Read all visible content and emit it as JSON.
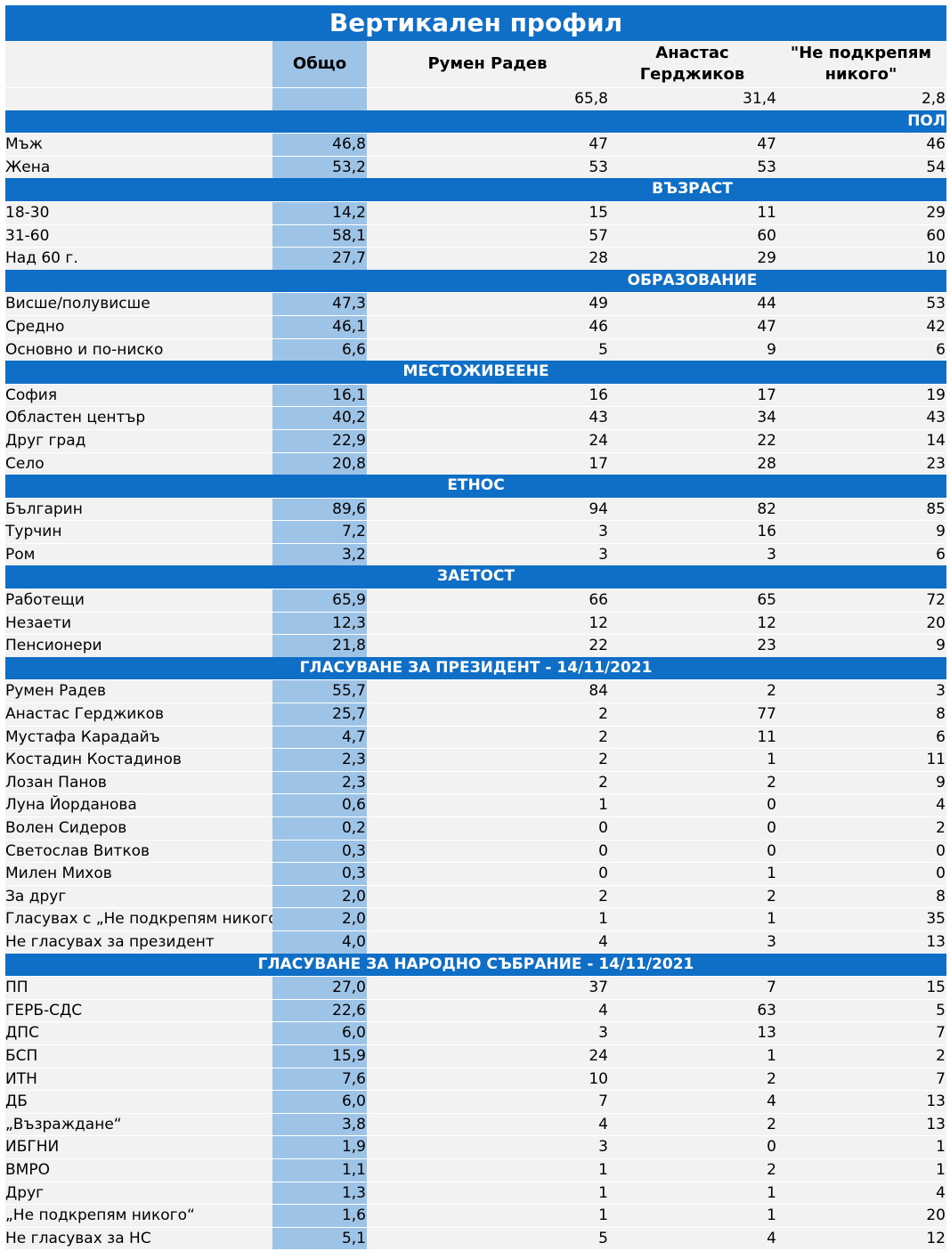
{
  "title": "Вертикален профил",
  "header": {
    "total": "Общо",
    "c1": "Румен Радев",
    "c2": "Анастас Герджиков",
    "c3_line1": "\"Не подкрепям",
    "c3_line2": "никого\""
  },
  "overall": {
    "total": "",
    "v1": "65,8",
    "v2": "31,4",
    "v3": "2,8"
  },
  "sections": [
    {
      "title": "ПОЛ",
      "align": "right",
      "rows": [
        {
          "label": "Мъж",
          "total": "46,8",
          "v1": "47",
          "v2": "47",
          "v3": "46"
        },
        {
          "label": "Жена",
          "total": "53,2",
          "v1": "53",
          "v2": "53",
          "v3": "54"
        }
      ]
    },
    {
      "title": "ВЪЗРАСТ",
      "align": "c2",
      "rows": [
        {
          "label": "18-30",
          "total": "14,2",
          "v1": "15",
          "v2": "11",
          "v3": "29"
        },
        {
          "label": "31-60",
          "total": "58,1",
          "v1": "57",
          "v2": "60",
          "v3": "60"
        },
        {
          "label": "Над 60 г.",
          "total": "27,7",
          "v1": "28",
          "v2": "29",
          "v3": "10"
        }
      ]
    },
    {
      "title": "ОБРАЗОВАНИЕ",
      "align": "c2",
      "rows": [
        {
          "label": "Висше/полувисше",
          "total": "47,3",
          "v1": "49",
          "v2": "44",
          "v3": "53"
        },
        {
          "label": "Средно",
          "total": "46,1",
          "v1": "46",
          "v2": "47",
          "v3": "42"
        },
        {
          "label": "Основно и по-ниско",
          "total": "6,6",
          "v1": "5",
          "v2": "9",
          "v3": "6"
        }
      ]
    },
    {
      "title": "МЕСТОЖИВЕЕНЕ",
      "align": "center",
      "rows": [
        {
          "label": "София",
          "total": "16,1",
          "v1": "16",
          "v2": "17",
          "v3": "19"
        },
        {
          "label": "Областен център",
          "total": "40,2",
          "v1": "43",
          "v2": "34",
          "v3": "43"
        },
        {
          "label": "Друг град",
          "total": "22,9",
          "v1": "24",
          "v2": "22",
          "v3": "14"
        },
        {
          "label": "Село",
          "total": "20,8",
          "v1": "17",
          "v2": "28",
          "v3": "23"
        }
      ]
    },
    {
      "title": "ЕТНОС",
      "align": "center",
      "rows": [
        {
          "label": "Българин",
          "total": "89,6",
          "v1": "94",
          "v2": "82",
          "v3": "85"
        },
        {
          "label": "Турчин",
          "total": "7,2",
          "v1": "3",
          "v2": "16",
          "v3": "9"
        },
        {
          "label": "Ром",
          "total": "3,2",
          "v1": "3",
          "v2": "3",
          "v3": "6"
        }
      ]
    },
    {
      "title": "ЗАЕТОСТ",
      "align": "center",
      "rows": [
        {
          "label": "Работещи",
          "total": "65,9",
          "v1": "66",
          "v2": "65",
          "v3": "72"
        },
        {
          "label": "Незаети",
          "total": "12,3",
          "v1": "12",
          "v2": "12",
          "v3": "20"
        },
        {
          "label": "Пенсионери",
          "total": "21,8",
          "v1": "22",
          "v2": "23",
          "v3": "9"
        }
      ]
    },
    {
      "title": "ГЛАСУВАНЕ ЗА ПРЕЗИДЕНТ - 14/11/2021",
      "align": "center",
      "rows": [
        {
          "label": "Румен Радев",
          "total": "55,7",
          "v1": "84",
          "v2": "2",
          "v3": "3"
        },
        {
          "label": "Анастас Герджиков",
          "total": "25,7",
          "v1": "2",
          "v2": "77",
          "v3": "8"
        },
        {
          "label": "Мустафа Карадайъ",
          "total": "4,7",
          "v1": "2",
          "v2": "11",
          "v3": "6"
        },
        {
          "label": "Костадин Костадинов",
          "total": "2,3",
          "v1": "2",
          "v2": "1",
          "v3": "11"
        },
        {
          "label": "Лозан Панов",
          "total": "2,3",
          "v1": "2",
          "v2": "2",
          "v3": "9"
        },
        {
          "label": "Луна Йорданова",
          "total": "0,6",
          "v1": "1",
          "v2": "0",
          "v3": "4"
        },
        {
          "label": "Волен Сидеров",
          "total": "0,2",
          "v1": "0",
          "v2": "0",
          "v3": "2"
        },
        {
          "label": "Светослав Витков",
          "total": "0,3",
          "v1": "0",
          "v2": "0",
          "v3": "0"
        },
        {
          "label": "Милен Михов",
          "total": "0,3",
          "v1": "0",
          "v2": "1",
          "v3": "0"
        },
        {
          "label": "За друг",
          "total": "2,0",
          "v1": "2",
          "v2": "2",
          "v3": "8"
        },
        {
          "label": "Гласувах с „Не подкрепям никого“",
          "total": "2,0",
          "v1": "1",
          "v2": "1",
          "v3": "35"
        },
        {
          "label": "Не гласувах за президент",
          "total": "4,0",
          "v1": "4",
          "v2": "3",
          "v3": "13"
        }
      ]
    },
    {
      "title": "ГЛАСУВАНЕ ЗА НАРОДНО СЪБРАНИЕ - 14/11/2021",
      "align": "center",
      "rows": [
        {
          "label": "ПП",
          "total": "27,0",
          "v1": "37",
          "v2": "7",
          "v3": "15"
        },
        {
          "label": "ГЕРБ-СДС",
          "total": "22,6",
          "v1": "4",
          "v2": "63",
          "v3": "5"
        },
        {
          "label": "ДПС",
          "total": "6,0",
          "v1": "3",
          "v2": "13",
          "v3": "7"
        },
        {
          "label": "БСП",
          "total": "15,9",
          "v1": "24",
          "v2": "1",
          "v3": "2"
        },
        {
          "label": "ИТН",
          "total": "7,6",
          "v1": "10",
          "v2": "2",
          "v3": "7"
        },
        {
          "label": "ДБ",
          "total": "6,0",
          "v1": "7",
          "v2": "4",
          "v3": "13"
        },
        {
          "label": "„Възраждане“",
          "total": "3,8",
          "v1": "4",
          "v2": "2",
          "v3": "13"
        },
        {
          "label": "ИБГНИ",
          "total": "1,9",
          "v1": "3",
          "v2": "0",
          "v3": "1"
        },
        {
          "label": "ВМРО",
          "total": "1,1",
          "v1": "1",
          "v2": "2",
          "v3": "1"
        },
        {
          "label": "Друг",
          "total": "1,3",
          "v1": "1",
          "v2": "1",
          "v3": "4"
        },
        {
          "label": "„Не подкрепям никого“",
          "total": "1,6",
          "v1": "1",
          "v2": "1",
          "v3": "20"
        },
        {
          "label": "Не гласувах за НС",
          "total": "5,1",
          "v1": "5",
          "v2": "4",
          "v3": "12"
        }
      ]
    }
  ]
}
